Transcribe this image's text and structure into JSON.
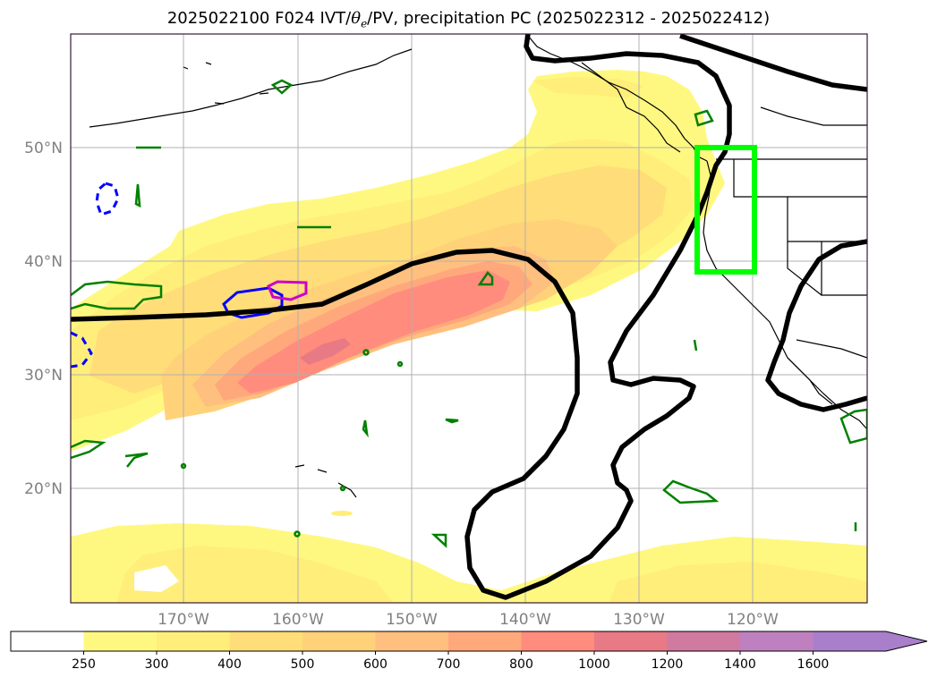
{
  "title": {
    "run": "2025022100 F024 IVT/",
    "theta_symbol": "θ",
    "theta_sub": "e",
    "rest": "/PV, precipitation PC (2025022312 - 2025022412)"
  },
  "map": {
    "lat_labels": [
      "50°N",
      "40°N",
      "30°N",
      "20°N"
    ],
    "lon_labels": [
      "170°W",
      "160°W",
      "150°W",
      "140°W",
      "130°W",
      "120°W"
    ]
  },
  "colorbar": {
    "levels": [
      "250",
      "300",
      "400",
      "500",
      "600",
      "700",
      "800",
      "1000",
      "1200",
      "1400",
      "1600"
    ],
    "colors": [
      "#ffffff",
      "#fff880",
      "#ffee7a",
      "#ffdd78",
      "#ffd27a",
      "#ffbf7e",
      "#ffa87c",
      "#ff8c7c",
      "#e87a85",
      "#d07aa0",
      "#bf80c0",
      "#a97fcc",
      "#a97fcc"
    ],
    "extend": "max"
  },
  "colors": {
    "ivt_250": "#fff880",
    "ivt_300": "#ffee7a",
    "ivt_400": "#ffdd78",
    "ivt_500": "#ffd27a",
    "ivt_600": "#ffbf7e",
    "ivt_700": "#ffa87c",
    "ivt_800": "#ff8c7c",
    "ivt_1000": "#e87a85",
    "pv_contour": "#000000",
    "precip_green": "#008000",
    "highlight_box": "#00ff00",
    "blue_contour": "#0000ff",
    "magenta_contour": "#cc00cc",
    "grid": "#b0b0b0",
    "axis_label": "#808080"
  }
}
